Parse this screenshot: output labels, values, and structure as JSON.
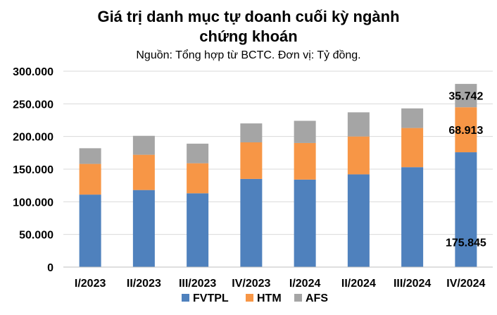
{
  "chart_data": {
    "type": "bar",
    "stacked": true,
    "title_line1": "Giá trị danh mục tự doanh cuối kỳ ngành",
    "title_line2": "chứng khoán",
    "subtitle": "Nguồn: Tổng hợp từ BCTC. Đơn vị: Tỷ đồng.",
    "categories": [
      "I/2023",
      "II/2023",
      "III/2023",
      "IV/2023",
      "I/2024",
      "II/2024",
      "III/2024",
      "IV/2024"
    ],
    "series": [
      {
        "name": "FVTPL",
        "color": "#4f81bd",
        "values": [
          111000,
          118000,
          113000,
          135000,
          134000,
          142000,
          153000,
          175845
        ]
      },
      {
        "name": "HTM",
        "color": "#f79646",
        "values": [
          47000,
          54000,
          46000,
          56000,
          56000,
          58000,
          60000,
          68913
        ]
      },
      {
        "name": "AFS",
        "color": "#a5a5a5",
        "values": [
          24000,
          29000,
          30000,
          29000,
          34000,
          37000,
          30000,
          35742
        ]
      }
    ],
    "y_ticks": [
      "0",
      "50.000",
      "100.000",
      "150.000",
      "200.000",
      "250.000",
      "300.000"
    ],
    "ylim": [
      0,
      300000
    ],
    "grid": true,
    "legend_position": "bottom",
    "data_labels": [
      {
        "category": "IV/2024",
        "series": "FVTPL",
        "text": "175.845"
      },
      {
        "category": "IV/2024",
        "series": "HTM",
        "text": "68.913"
      },
      {
        "category": "IV/2024",
        "series": "AFS",
        "text": "35.742"
      }
    ]
  }
}
